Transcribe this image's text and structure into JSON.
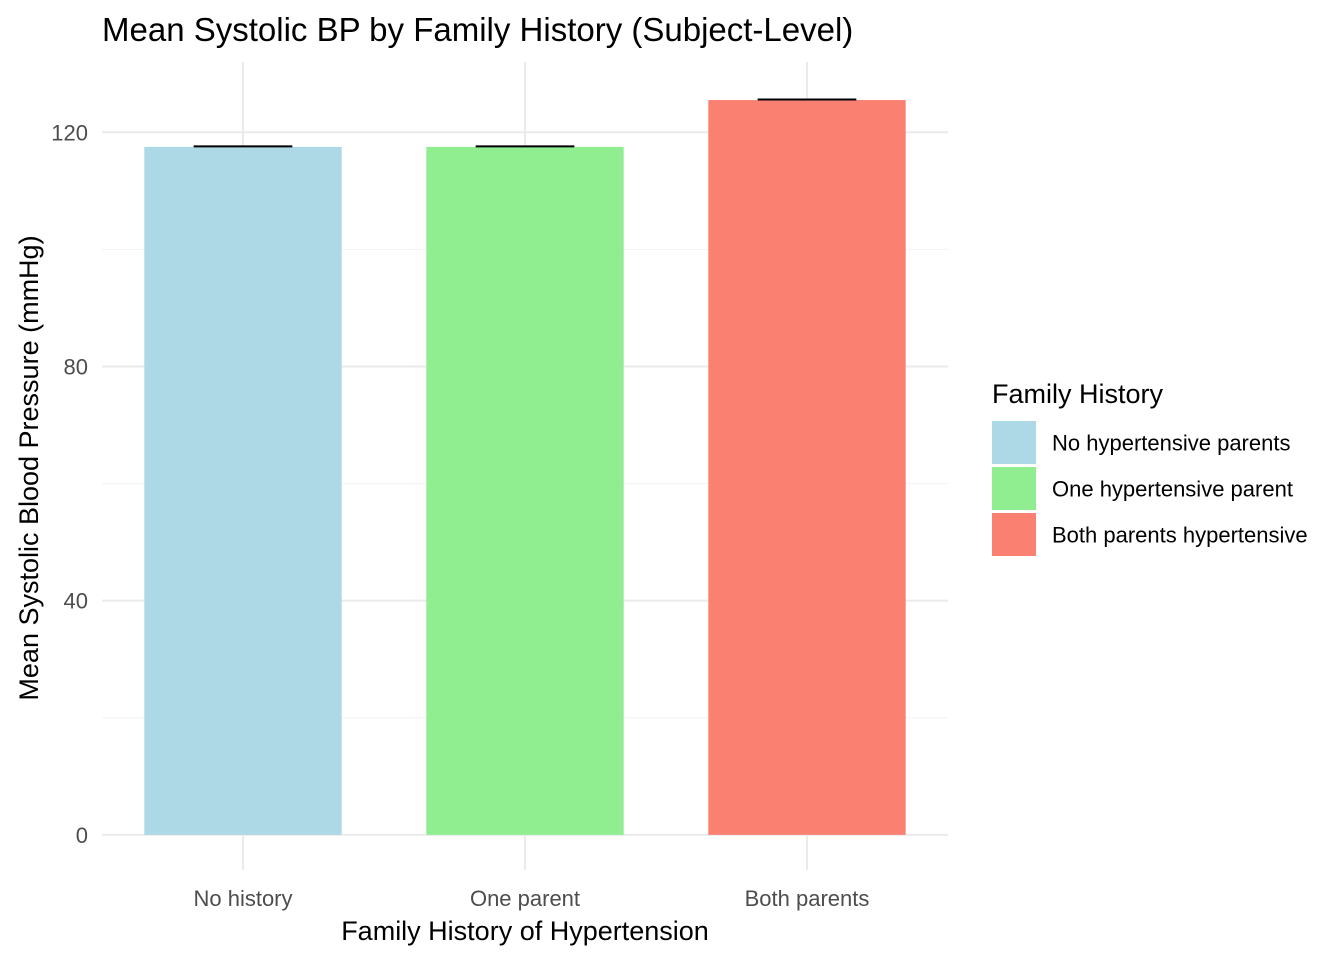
{
  "chart_data": {
    "type": "bar",
    "title": "Mean Systolic BP by Family History (Subject-Level)",
    "xlabel": "Family History of Hypertension",
    "ylabel": "Mean Systolic Blood Pressure (mmHg)",
    "categories": [
      "No history",
      "One parent",
      "Both parents"
    ],
    "values": [
      117.5,
      117.5,
      125.5
    ],
    "error_upper": [
      117.6,
      117.6,
      125.6
    ],
    "ylim": [
      -6,
      132
    ],
    "yticks": [
      0,
      40,
      80,
      120
    ],
    "ytick_labels": [
      "0",
      "40",
      "80",
      "120"
    ],
    "grid": true,
    "legend": {
      "title": "Family History",
      "placement": "right",
      "entries": [
        "No hypertensive parents",
        "One hypertensive parent",
        "Both parents hypertensive"
      ]
    },
    "colors": [
      "#add8e6",
      "#90ee90",
      "#fa8072"
    ]
  }
}
